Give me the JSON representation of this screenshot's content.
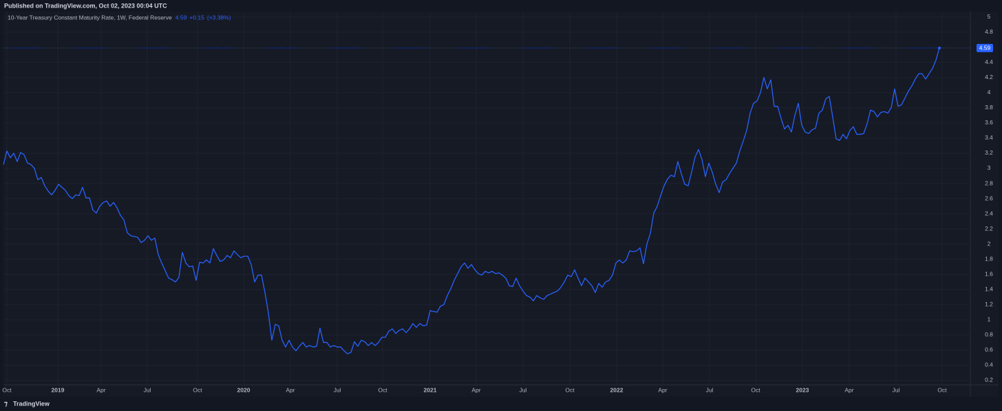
{
  "header": {
    "published": "Published on TradingView.com, Oct 02, 2023 00:04 UTC"
  },
  "footer": {
    "brand": "TradingView"
  },
  "chart_data": {
    "type": "line",
    "series": [
      {
        "name": "10-Year Treasury Constant Maturity Rate, 1W, Federal Reserve",
        "color": "#2962ff",
        "values": [
          3.05,
          3.23,
          3.14,
          3.2,
          3.09,
          3.21,
          3.18,
          3.07,
          3.05,
          3.0,
          2.85,
          2.88,
          2.77,
          2.7,
          2.65,
          2.71,
          2.79,
          2.75,
          2.71,
          2.64,
          2.6,
          2.65,
          2.64,
          2.75,
          2.61,
          2.61,
          2.45,
          2.41,
          2.5,
          2.55,
          2.57,
          2.5,
          2.55,
          2.48,
          2.38,
          2.32,
          2.15,
          2.11,
          2.1,
          2.09,
          2.02,
          2.05,
          2.11,
          2.05,
          2.08,
          1.86,
          1.75,
          1.65,
          1.55,
          1.53,
          1.5,
          1.56,
          1.89,
          1.75,
          1.7,
          1.71,
          1.52,
          1.76,
          1.75,
          1.79,
          1.75,
          1.94,
          1.85,
          1.77,
          1.79,
          1.85,
          1.82,
          1.91,
          1.86,
          1.82,
          1.84,
          1.84,
          1.73,
          1.5,
          1.59,
          1.59,
          1.36,
          1.09,
          0.73,
          0.94,
          0.92,
          0.73,
          0.64,
          0.73,
          0.64,
          0.59,
          0.65,
          0.7,
          0.64,
          0.66,
          0.64,
          0.65,
          0.89,
          0.7,
          0.7,
          0.64,
          0.66,
          0.64,
          0.64,
          0.59,
          0.55,
          0.57,
          0.71,
          0.65,
          0.73,
          0.71,
          0.66,
          0.7,
          0.66,
          0.7,
          0.77,
          0.77,
          0.85,
          0.88,
          0.82,
          0.86,
          0.88,
          0.83,
          0.88,
          0.95,
          0.9,
          0.95,
          0.92,
          0.93,
          1.12,
          1.11,
          1.1,
          1.18,
          1.2,
          1.32,
          1.41,
          1.52,
          1.61,
          1.7,
          1.75,
          1.68,
          1.73,
          1.66,
          1.61,
          1.59,
          1.64,
          1.62,
          1.64,
          1.61,
          1.62,
          1.59,
          1.55,
          1.45,
          1.44,
          1.55,
          1.45,
          1.38,
          1.32,
          1.3,
          1.25,
          1.32,
          1.29,
          1.27,
          1.32,
          1.34,
          1.36,
          1.38,
          1.43,
          1.5,
          1.59,
          1.57,
          1.66,
          1.55,
          1.45,
          1.55,
          1.5,
          1.45,
          1.36,
          1.48,
          1.43,
          1.5,
          1.52,
          1.59,
          1.75,
          1.79,
          1.75,
          1.79,
          1.91,
          1.9,
          1.91,
          1.95,
          1.74,
          2.0,
          2.14,
          2.41,
          2.5,
          2.64,
          2.77,
          2.86,
          2.91,
          2.89,
          3.09,
          2.93,
          2.79,
          2.77,
          2.95,
          3.15,
          3.25,
          3.12,
          2.89,
          3.07,
          2.95,
          2.79,
          2.68,
          2.82,
          2.85,
          2.93,
          3.0,
          3.07,
          3.23,
          3.36,
          3.5,
          3.73,
          3.86,
          3.89,
          4.0,
          4.2,
          4.05,
          4.17,
          3.82,
          3.82,
          3.66,
          3.52,
          3.57,
          3.48,
          3.7,
          3.86,
          3.57,
          3.48,
          3.46,
          3.51,
          3.53,
          3.73,
          3.77,
          3.92,
          3.95,
          3.68,
          3.39,
          3.37,
          3.45,
          3.39,
          3.5,
          3.55,
          3.45,
          3.45,
          3.46,
          3.59,
          3.77,
          3.75,
          3.68,
          3.74,
          3.75,
          3.73,
          3.8,
          4.05,
          3.82,
          3.84,
          3.93,
          4.02,
          4.09,
          4.18,
          4.25,
          4.25,
          4.18,
          4.25,
          4.32,
          4.43,
          4.59
        ]
      }
    ],
    "last_value": 4.59,
    "change": {
      "value": 0.15,
      "label": "+0.15"
    },
    "change_pct": {
      "value": 3.38,
      "label": "(+3.38%)"
    },
    "xlim": [
      0,
      281
    ],
    "xticks": [
      {
        "value": 1.0,
        "label": "Oct"
      },
      {
        "value": 15.8,
        "label": "2019"
      },
      {
        "value": 28.4,
        "label": "Apr"
      },
      {
        "value": 41.8,
        "label": "Jul"
      },
      {
        "value": 56.4,
        "label": "Oct"
      },
      {
        "value": 69.8,
        "label": "2020"
      },
      {
        "value": 83.4,
        "label": "Apr"
      },
      {
        "value": 97,
        "label": "Jul"
      },
      {
        "value": 110.2,
        "label": "Oct"
      },
      {
        "value": 124,
        "label": "2021"
      },
      {
        "value": 137.4,
        "label": "Apr"
      },
      {
        "value": 151,
        "label": "Jul"
      },
      {
        "value": 164.6,
        "label": "Oct"
      },
      {
        "value": 178.2,
        "label": "2022"
      },
      {
        "value": 191.6,
        "label": "Apr"
      },
      {
        "value": 205.2,
        "label": "Jul"
      },
      {
        "value": 218.6,
        "label": "Oct"
      },
      {
        "value": 232.2,
        "label": "2023"
      },
      {
        "value": 245.8,
        "label": "Apr"
      },
      {
        "value": 259.4,
        "label": "Jul"
      },
      {
        "value": 272.8,
        "label": "Oct"
      }
    ],
    "ylim": [
      0.14,
      5.07
    ],
    "yticks": [
      0.2,
      0.4,
      0.6,
      0.8,
      1,
      1.2,
      1.4,
      1.6,
      1.8,
      2,
      2.2,
      2.4,
      2.6,
      2.8,
      3,
      3.2,
      3.4,
      3.6,
      3.8,
      4,
      4.2,
      4.4,
      4.8,
      5
    ],
    "grid": true
  }
}
